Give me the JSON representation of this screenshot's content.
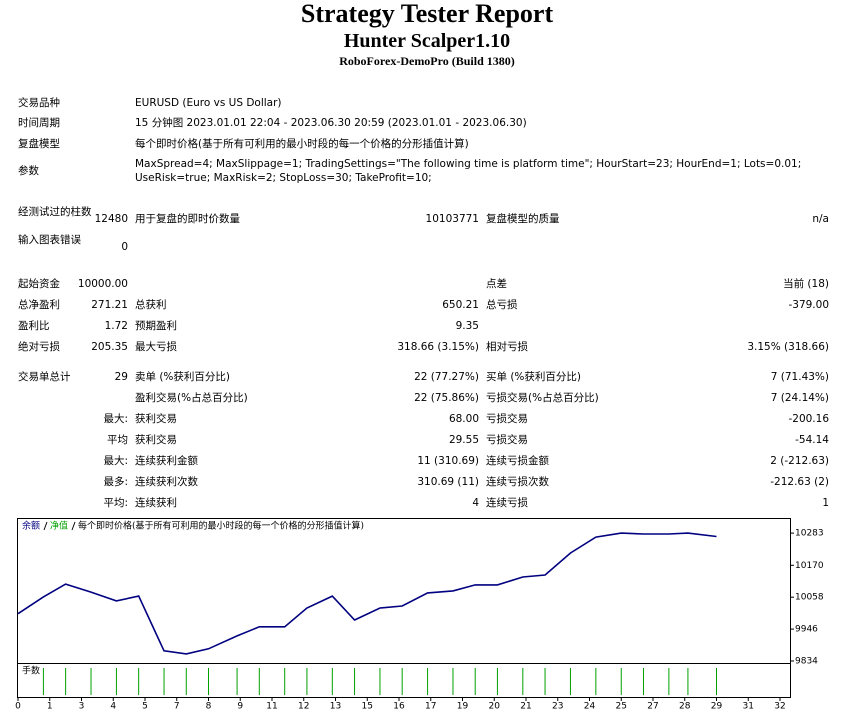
{
  "header": {
    "title": "Strategy Tester Report",
    "subtitle": "Hunter Scalper1.10",
    "build": "RoboForex-DemoPro (Build 1380)"
  },
  "info": [
    {
      "label": "交易品种",
      "value": "EURUSD (Euro vs US Dollar)"
    },
    {
      "label": "时间周期",
      "value": "15 分钟图 2023.01.01 22:04 - 2023.06.30 20:59 (2023.01.01 - 2023.06.30)"
    },
    {
      "label": "复盘模型",
      "value": "每个即时价格(基于所有可利用的最小时段的每一个价格的分形插值计算)"
    },
    {
      "label": "参数",
      "value": "MaxSpread=4; MaxSlippage=1; TradingSettings=\"The following time is platform time\"; HourStart=23; HourEnd=1; Lots=0.01; UseRisk=true; MaxRisk=2; StopLoss=30; TakeProfit=10;"
    }
  ],
  "stats": [
    [
      "经测试过的柱数",
      "12480",
      "用于复盘的即时价数量",
      "10103771",
      "复盘模型的质量",
      "n/a"
    ],
    [
      "输入图表错误",
      "0",
      null,
      null,
      null,
      null
    ],
    [
      "起始资金",
      "10000.00",
      null,
      null,
      "点差",
      "当前 (18)"
    ],
    [
      "总净盈利",
      "271.21",
      "总获利",
      "650.21",
      "总亏损",
      "-379.00"
    ],
    [
      "盈利比",
      "1.72",
      "预期盈利",
      "9.35",
      null,
      null
    ],
    [
      "绝对亏损",
      "205.35",
      "最大亏损",
      "318.66 (3.15%)",
      "相对亏损",
      "3.15% (318.66)"
    ],
    [
      "交易单总计",
      "29",
      "卖单 (%获利百分比)",
      "22 (77.27%)",
      "买单 (%获利百分比)",
      "7 (71.43%)"
    ],
    [
      null,
      null,
      "盈利交易(%占总百分比)",
      "22 (75.86%)",
      "亏损交易(%占总百分比)",
      "7 (24.14%)"
    ],
    [
      null,
      "最大:",
      "获利交易",
      "68.00",
      "亏损交易",
      "-200.16"
    ],
    [
      null,
      "平均",
      "获利交易",
      "29.55",
      "亏损交易",
      "-54.14"
    ],
    [
      null,
      "最大:",
      "连续获利金额",
      "11 (310.69)",
      "连续亏损金额",
      "2 (-212.63)"
    ],
    [
      null,
      "最多:",
      "连续获利次数",
      "310.69 (11)",
      "连续亏损次数",
      "-212.63 (2)"
    ],
    [
      null,
      "平均:",
      "连续获利",
      "4",
      "连续亏损",
      "1"
    ]
  ],
  "chart_data": {
    "type": "line",
    "series": [
      {
        "name": "余额",
        "color": "#000080",
        "x": [
          0,
          0.8,
          1.5,
          2.3,
          3.1,
          3.8,
          4.6,
          5.3,
          6.0,
          6.9,
          7.6,
          8.4,
          9.1,
          9.9,
          10.6,
          11.4,
          12.1,
          12.9,
          13.7,
          14.4,
          15.1,
          15.9,
          16.6,
          17.4,
          18.2,
          19.0,
          19.7,
          20.5,
          21.1,
          22.0
        ],
        "values": [
          10000,
          10059,
          10104,
          10076,
          10045,
          10062,
          9870,
          9859,
          9877,
          9922,
          9954,
          9954,
          10020,
          10062,
          9978,
          10020,
          10027,
          10073,
          10080,
          10101,
          10101,
          10129,
          10136,
          10213,
          10269,
          10283,
          10280,
          10280,
          10283,
          10271
        ]
      }
    ],
    "equity_label": "净值",
    "equity_color": "#00a000",
    "model_note": "每个即时价格(基于所有可利用的最小时段的每一个价格的分形插值计算)",
    "volume_label": "手数",
    "volume_color": "#00a000",
    "ylim": [
      9827,
      10336
    ],
    "yticks": [
      9834,
      9946,
      10058,
      10170,
      10283
    ],
    "xlim": [
      0,
      24.3
    ],
    "xticks": [
      {
        "value": 0,
        "label": "0"
      },
      {
        "value": 1,
        "label": "1"
      },
      {
        "value": 2,
        "label": "3"
      },
      {
        "value": 3,
        "label": "4"
      },
      {
        "value": 4,
        "label": "5"
      },
      {
        "value": 5,
        "label": "7"
      },
      {
        "value": 6,
        "label": "8"
      },
      {
        "value": 7,
        "label": "9"
      },
      {
        "value": 8,
        "label": "11"
      },
      {
        "value": 9,
        "label": "12"
      },
      {
        "value": 10,
        "label": "13"
      },
      {
        "value": 11,
        "label": "15"
      },
      {
        "value": 12,
        "label": "16"
      },
      {
        "value": 13,
        "label": "17"
      },
      {
        "value": 14,
        "label": "19"
      },
      {
        "value": 15,
        "label": "20"
      },
      {
        "value": 16,
        "label": "21"
      },
      {
        "value": 17,
        "label": "23"
      },
      {
        "value": 18,
        "label": "24"
      },
      {
        "value": 19,
        "label": "25"
      },
      {
        "value": 20,
        "label": "27"
      },
      {
        "value": 21,
        "label": "28"
      },
      {
        "value": 22,
        "label": "29"
      },
      {
        "value": 23,
        "label": "31"
      },
      {
        "value": 24,
        "label": "32"
      }
    ]
  }
}
